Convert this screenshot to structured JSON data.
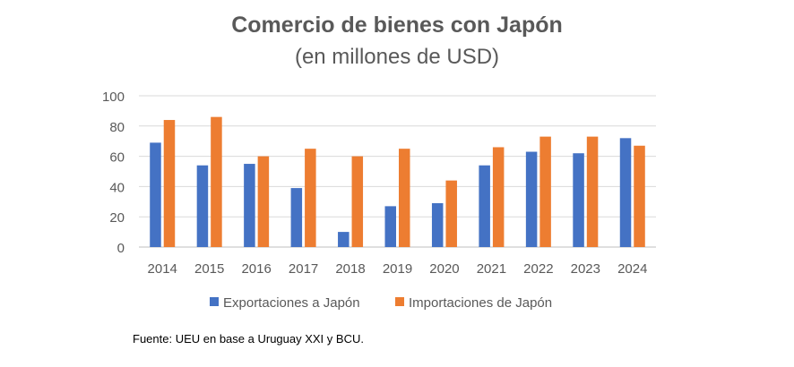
{
  "chart_data": {
    "type": "bar",
    "title": "Comercio de bienes con Japón",
    "subtitle": "(en millones de USD)",
    "categories": [
      "2014",
      "2015",
      "2016",
      "2017",
      "2018",
      "2019",
      "2020",
      "2021",
      "2022",
      "2023",
      "2024"
    ],
    "series": [
      {
        "name": "Exportaciones a Japón",
        "color": "#4472C4",
        "values": [
          69,
          54,
          55,
          39,
          10,
          27,
          29,
          54,
          63,
          62,
          72
        ]
      },
      {
        "name": "Importaciones de Japón",
        "color": "#ED7D31",
        "values": [
          84,
          86,
          60,
          65,
          60,
          65,
          44,
          66,
          73,
          73,
          67
        ]
      }
    ],
    "ylim": [
      0,
      100
    ],
    "yticks": [
      "0",
      "20",
      "40",
      "60",
      "80",
      "100"
    ],
    "grid": true,
    "legend": "bottom"
  },
  "source": "Fuente: UEU en base a Uruguay XXI y BCU."
}
